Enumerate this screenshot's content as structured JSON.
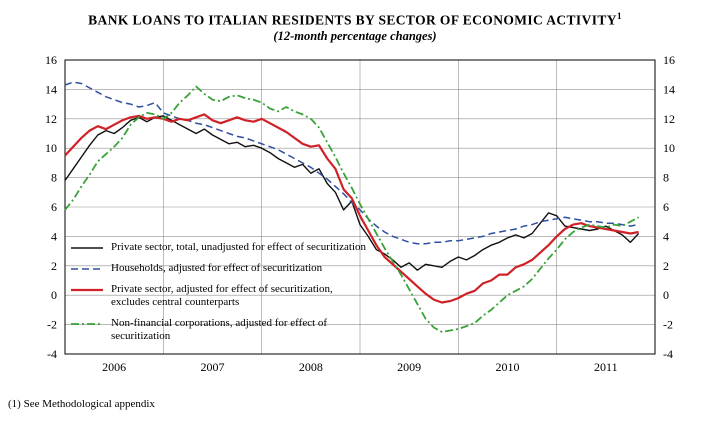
{
  "title": "BANK LOANS TO ITALIAN RESIDENTS BY SECTOR OF ECONOMIC ACTIVITY",
  "title_superscript": "1",
  "subtitle": "(12-month percentage changes)",
  "footnote": "(1) See Methodological appendix",
  "chart_data": {
    "type": "line",
    "title": "BANK LOANS TO ITALIAN RESIDENTS BY SECTOR OF ECONOMIC ACTIVITY",
    "subtitle": "(12-month percentage changes)",
    "x_tick_labels": [
      "2006",
      "2007",
      "2008",
      "2009",
      "2010",
      "2011"
    ],
    "x_domain_months": 72,
    "x_frequency": "monthly",
    "x_start": "2006-01",
    "x_end": "2011-11",
    "ylim": [
      -4,
      16
    ],
    "y_ticks": [
      -4,
      -2,
      0,
      2,
      4,
      6,
      8,
      10,
      12,
      14,
      16
    ],
    "grid": true,
    "legend_position": "inside-lower-left",
    "axis_sides": [
      "left",
      "right"
    ],
    "series": [
      {
        "name": "Private sector, total, unadjusted for effect of securitization",
        "color": "#111111",
        "dash": "solid",
        "width": 1.4,
        "values": [
          7.8,
          8.6,
          9.4,
          10.2,
          10.9,
          11.2,
          11.0,
          11.4,
          11.9,
          12.1,
          11.8,
          12.1,
          12.2,
          11.9,
          11.6,
          11.3,
          11.0,
          11.3,
          10.9,
          10.6,
          10.3,
          10.4,
          10.1,
          10.2,
          10.0,
          9.7,
          9.3,
          9.0,
          8.7,
          8.9,
          8.3,
          8.6,
          7.6,
          7.0,
          5.8,
          6.4,
          4.8,
          4.0,
          3.1,
          2.8,
          2.4,
          1.9,
          2.2,
          1.7,
          2.1,
          2.0,
          1.9,
          2.3,
          2.6,
          2.4,
          2.7,
          3.1,
          3.4,
          3.6,
          3.9,
          4.1,
          3.9,
          4.2,
          4.9,
          5.6,
          5.4,
          4.7,
          4.6,
          4.5,
          4.4,
          4.5,
          4.7,
          4.4,
          4.1,
          3.6,
          4.2
        ]
      },
      {
        "name": "Households, adjusted for effect of securitization",
        "color": "#2f4f9f",
        "dash": "dashed",
        "width": 1.5,
        "values": [
          14.3,
          14.5,
          14.4,
          14.1,
          13.8,
          13.5,
          13.3,
          13.1,
          13.0,
          12.8,
          12.9,
          13.1,
          12.4,
          12.2,
          12.0,
          11.9,
          11.7,
          11.6,
          11.4,
          11.2,
          11.0,
          10.8,
          10.7,
          10.5,
          10.3,
          10.1,
          9.9,
          9.6,
          9.3,
          9.0,
          8.7,
          8.3,
          7.9,
          7.4,
          6.9,
          6.3,
          5.8,
          5.2,
          4.7,
          4.3,
          4.0,
          3.8,
          3.6,
          3.5,
          3.5,
          3.6,
          3.6,
          3.7,
          3.7,
          3.8,
          3.9,
          4.0,
          4.2,
          4.3,
          4.4,
          4.5,
          4.7,
          4.8,
          5.0,
          5.1,
          5.2,
          5.3,
          5.2,
          5.1,
          5.0,
          5.0,
          4.9,
          4.9,
          4.8,
          4.7,
          4.8
        ]
      },
      {
        "name": "Private sector, adjusted for effect of securitization,\nexcludes central counterparts",
        "color": "#cf2127",
        "dash": "solid",
        "width": 2.2,
        "values": [
          9.5,
          10.1,
          10.7,
          11.2,
          11.5,
          11.3,
          11.6,
          11.9,
          12.1,
          12.2,
          12.0,
          12.1,
          12.0,
          11.8,
          12.0,
          11.9,
          12.1,
          12.3,
          11.9,
          11.7,
          11.9,
          12.1,
          11.9,
          11.8,
          12.0,
          11.7,
          11.4,
          11.1,
          10.7,
          10.3,
          10.1,
          10.2,
          9.3,
          8.6,
          7.2,
          6.6,
          5.4,
          4.4,
          3.4,
          2.6,
          2.1,
          1.6,
          1.1,
          0.6,
          0.1,
          -0.3,
          -0.5,
          -0.4,
          -0.2,
          0.1,
          0.3,
          0.8,
          1.0,
          1.4,
          1.4,
          1.9,
          2.1,
          2.4,
          2.9,
          3.4,
          4.0,
          4.5,
          4.8,
          4.9,
          4.7,
          4.6,
          4.5,
          4.4,
          4.3,
          4.2,
          4.3
        ]
      },
      {
        "name": "Non-financial corporations, adjusted for effect of\nsecuritization",
        "color": "#3aa23a",
        "dash": "dashdot",
        "width": 1.8,
        "values": [
          5.8,
          6.5,
          7.4,
          8.2,
          9.1,
          9.6,
          10.1,
          10.7,
          11.6,
          12.1,
          12.4,
          12.3,
          12.0,
          12.4,
          13.1,
          13.6,
          14.2,
          13.7,
          13.3,
          13.2,
          13.5,
          13.6,
          13.4,
          13.3,
          13.1,
          12.7,
          12.5,
          12.8,
          12.5,
          12.3,
          12.0,
          11.4,
          10.4,
          9.4,
          8.3,
          7.3,
          6.2,
          5.2,
          4.2,
          3.2,
          2.3,
          1.4,
          0.4,
          -0.6,
          -1.6,
          -2.2,
          -2.5,
          -2.4,
          -2.3,
          -2.1,
          -1.9,
          -1.4,
          -1.0,
          -0.5,
          0.0,
          0.3,
          0.6,
          1.1,
          1.8,
          2.5,
          3.1,
          3.8,
          4.3,
          4.6,
          4.8,
          4.7,
          4.6,
          4.8,
          4.7,
          5.0,
          5.3
        ]
      }
    ]
  }
}
